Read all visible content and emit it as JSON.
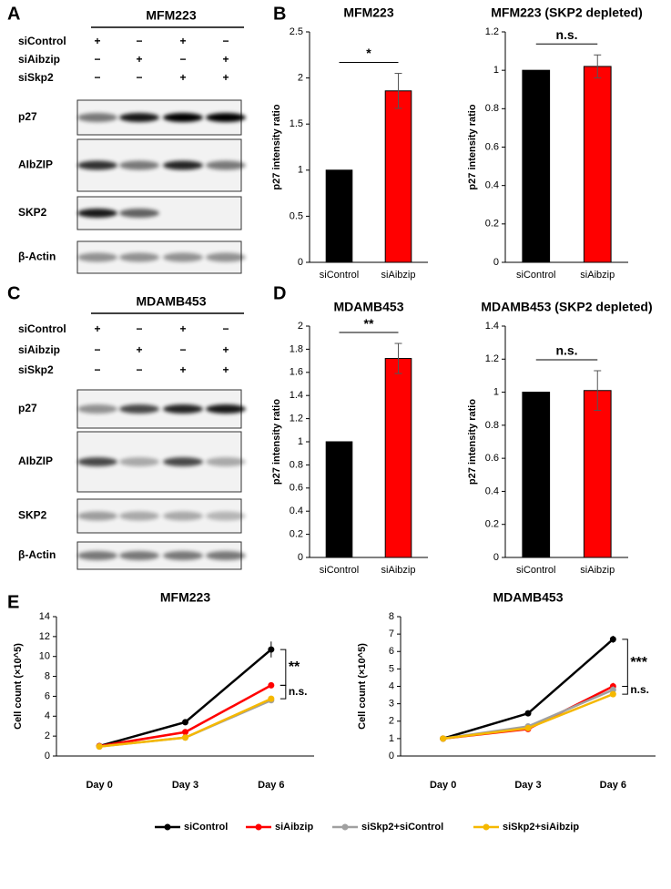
{
  "panel_labels": [
    "A",
    "B",
    "C",
    "D",
    "E"
  ],
  "blots": [
    {
      "title": "MFM223",
      "treatments": [
        {
          "name": "siControl",
          "signs": [
            "+",
            "−",
            "+",
            "−"
          ]
        },
        {
          "name": "siAibzip",
          "signs": [
            "−",
            "+",
            "−",
            "+"
          ]
        },
        {
          "name": "siSkp2",
          "signs": [
            "−",
            "−",
            "+",
            "+"
          ]
        }
      ],
      "bands": [
        "p27",
        "AIbZIP",
        "SKP2",
        "β-Actin"
      ]
    },
    {
      "title": "MDAMB453",
      "treatments": [
        {
          "name": "siControl",
          "signs": [
            "+",
            "−",
            "+",
            "−"
          ]
        },
        {
          "name": "siAibzip",
          "signs": [
            "−",
            "+",
            "−",
            "+"
          ]
        },
        {
          "name": "siSkp2",
          "signs": [
            "−",
            "−",
            "+",
            "+"
          ]
        }
      ],
      "bands": [
        "p27",
        "AIbZIP",
        "SKP2",
        "β-Actin"
      ]
    }
  ],
  "chart_data": [
    {
      "type": "bar",
      "title": "MFM223",
      "y_label": "p27 intensity ratio",
      "categories": [
        "siControl",
        "siAibzip"
      ],
      "values": [
        1,
        1.86
      ],
      "errors": [
        0,
        0.19
      ],
      "colors": [
        "#000000",
        "#ff0000"
      ],
      "ylim": [
        0,
        2.5
      ],
      "yticks": [
        0,
        0.5,
        1,
        1.5,
        2,
        2.5
      ],
      "annotations": [
        "*"
      ]
    },
    {
      "type": "bar",
      "title": "MFM223 (SKP2 depleted)",
      "y_label": "p27 intensity ratio",
      "categories": [
        "siControl",
        "siAibzip"
      ],
      "values": [
        1,
        1.02
      ],
      "errors": [
        0,
        0.06
      ],
      "colors": [
        "#000000",
        "#ff0000"
      ],
      "ylim": [
        0,
        1.2
      ],
      "yticks": [
        0,
        0.2,
        0.4,
        0.6,
        0.8,
        1,
        1.2
      ],
      "annotations": [
        "n.s."
      ]
    },
    {
      "type": "bar",
      "title": "MDAMB453",
      "y_label": "p27 intensity ratio",
      "categories": [
        "siControl",
        "siAibzip"
      ],
      "values": [
        1,
        1.72
      ],
      "errors": [
        0,
        0.13
      ],
      "colors": [
        "#000000",
        "#ff0000"
      ],
      "ylim": [
        0,
        2
      ],
      "yticks": [
        0,
        0.2,
        0.4,
        0.6,
        0.8,
        1,
        1.2,
        1.4,
        1.6,
        1.8,
        2
      ],
      "annotations": [
        "**"
      ]
    },
    {
      "type": "bar",
      "title": "MDAMB453 (SKP2 depleted)",
      "y_label": "p27 intensity ratio",
      "categories": [
        "siControl",
        "siAibzip"
      ],
      "values": [
        1,
        1.01
      ],
      "errors": [
        0,
        0.12
      ],
      "colors": [
        "#000000",
        "#ff0000"
      ],
      "ylim": [
        0,
        1.4
      ],
      "yticks": [
        0,
        0.2,
        0.4,
        0.6,
        0.8,
        1,
        1.2,
        1.4
      ],
      "annotations": [
        "n.s."
      ]
    },
    {
      "type": "line",
      "title": "MFM223",
      "y_label": "Cell count (×10^5)",
      "categories": [
        "Day 0",
        "Day 3",
        "Day 6"
      ],
      "ylim": [
        0,
        14
      ],
      "yticks": [
        0,
        2,
        4,
        6,
        8,
        10,
        12,
        14
      ],
      "annotations": [
        "**",
        "n.s."
      ],
      "series": [
        {
          "name": "siControl",
          "color": "#000000",
          "values": [
            1,
            3.4,
            10.7
          ],
          "errors": [
            0.05,
            0.1,
            0.8
          ]
        },
        {
          "name": "siAibzip",
          "color": "#ff0000",
          "values": [
            1,
            2.4,
            7.1
          ],
          "errors": [
            0.05,
            0.1,
            0.2
          ]
        },
        {
          "name": "siSkp2+siControl",
          "color": "#a0a0a0",
          "values": [
            0.95,
            1.85,
            5.6
          ],
          "errors": [
            0.05,
            0.1,
            0.2
          ]
        },
        {
          "name": "siSkp2+siAibzip",
          "color": "#f5b800",
          "values": [
            0.95,
            1.85,
            5.75
          ],
          "errors": [
            0.05,
            0.1,
            0.3
          ]
        }
      ]
    },
    {
      "type": "line",
      "title": "MDAMB453",
      "y_label": "Cell count (×10^5)",
      "categories": [
        "Day 0",
        "Day 3",
        "Day 6"
      ],
      "ylim": [
        0,
        8
      ],
      "yticks": [
        0,
        1,
        2,
        3,
        4,
        5,
        6,
        7,
        8
      ],
      "annotations": [
        "***",
        "n.s."
      ],
      "series": [
        {
          "name": "siControl",
          "color": "#000000",
          "values": [
            1,
            2.45,
            6.7
          ],
          "errors": [
            0.05,
            0.08,
            0.2
          ]
        },
        {
          "name": "siAibzip",
          "color": "#ff0000",
          "values": [
            1,
            1.55,
            4.0
          ],
          "errors": [
            0.05,
            0.08,
            0.2
          ]
        },
        {
          "name": "siSkp2+siControl",
          "color": "#a0a0a0",
          "values": [
            1,
            1.7,
            3.8
          ],
          "errors": [
            0.05,
            0.15,
            0.2
          ]
        },
        {
          "name": "siSkp2+siAibzip",
          "color": "#f5b800",
          "values": [
            1,
            1.6,
            3.55
          ],
          "errors": [
            0.05,
            0.08,
            0.15
          ]
        }
      ]
    }
  ]
}
